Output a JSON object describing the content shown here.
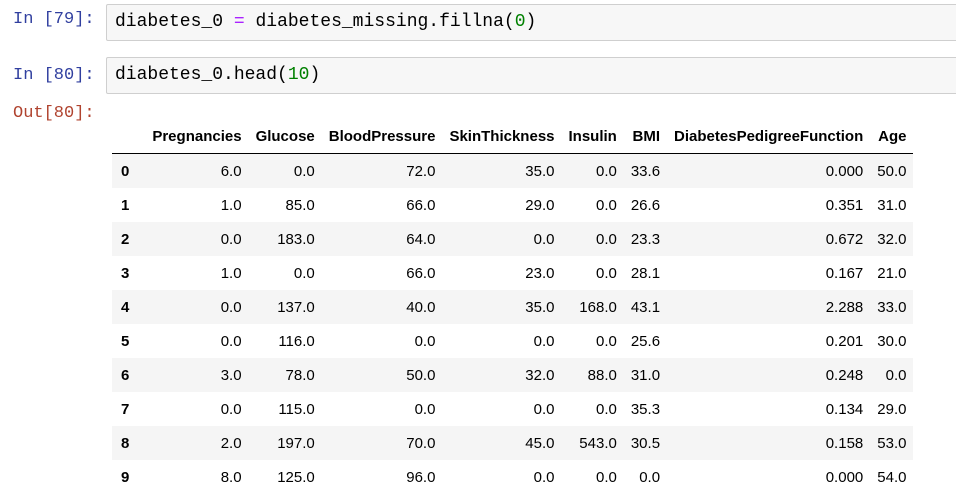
{
  "cells": [
    {
      "prompt": "In [79]:",
      "code": {
        "lhs": "diabetes_0",
        "op": "=",
        "rhs_call": "diabetes_missing.fillna(",
        "rhs_arg": "0",
        "rhs_close": ")"
      }
    },
    {
      "prompt": "In [80]:",
      "code": {
        "call": "diabetes_0.head(",
        "arg": "10",
        "close": ")"
      }
    }
  ],
  "output": {
    "prompt": "Out[80]:",
    "columns": [
      "",
      "Pregnancies",
      "Glucose",
      "BloodPressure",
      "SkinThickness",
      "Insulin",
      "BMI",
      "DiabetesPedigreeFunction",
      "Age"
    ],
    "rows": [
      {
        "index": "0",
        "values": [
          "6.0",
          "0.0",
          "72.0",
          "35.0",
          "0.0",
          "33.6",
          "0.000",
          "50.0"
        ]
      },
      {
        "index": "1",
        "values": [
          "1.0",
          "85.0",
          "66.0",
          "29.0",
          "0.0",
          "26.6",
          "0.351",
          "31.0"
        ]
      },
      {
        "index": "2",
        "values": [
          "0.0",
          "183.0",
          "64.0",
          "0.0",
          "0.0",
          "23.3",
          "0.672",
          "32.0"
        ]
      },
      {
        "index": "3",
        "values": [
          "1.0",
          "0.0",
          "66.0",
          "23.0",
          "0.0",
          "28.1",
          "0.167",
          "21.0"
        ]
      },
      {
        "index": "4",
        "values": [
          "0.0",
          "137.0",
          "40.0",
          "35.0",
          "168.0",
          "43.1",
          "2.288",
          "33.0"
        ]
      },
      {
        "index": "5",
        "values": [
          "0.0",
          "116.0",
          "0.0",
          "0.0",
          "0.0",
          "25.6",
          "0.201",
          "30.0"
        ]
      },
      {
        "index": "6",
        "values": [
          "3.0",
          "78.0",
          "50.0",
          "32.0",
          "88.0",
          "31.0",
          "0.248",
          "0.0"
        ]
      },
      {
        "index": "7",
        "values": [
          "0.0",
          "115.0",
          "0.0",
          "0.0",
          "0.0",
          "35.3",
          "0.134",
          "29.0"
        ]
      },
      {
        "index": "8",
        "values": [
          "2.0",
          "197.0",
          "70.0",
          "45.0",
          "543.0",
          "30.5",
          "0.158",
          "53.0"
        ]
      },
      {
        "index": "9",
        "values": [
          "8.0",
          "125.0",
          "96.0",
          "0.0",
          "0.0",
          "0.0",
          "0.000",
          "54.0"
        ]
      }
    ]
  },
  "colors": {
    "in_prompt": "#303f9f",
    "out_prompt": "#b0432f",
    "operator": "#aa22ff",
    "number_literal": "#008000",
    "input_background": "#f7f7f7",
    "striped_row": "#f5f5f5"
  }
}
